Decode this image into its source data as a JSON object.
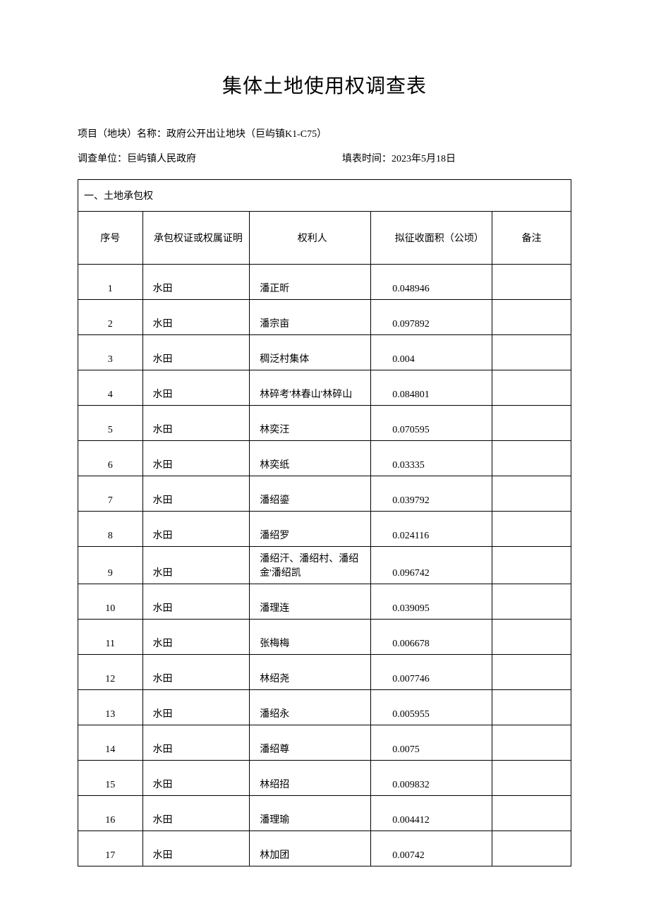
{
  "title": "集体土地使用权调查表",
  "meta": {
    "project_label": "项目（地块）名称：",
    "project_name": "政府公开出让地块（巨屿镇K1-C75）",
    "unit_label": "调查单位：",
    "unit_name": "巨屿镇人民政府",
    "date_label": "填表时间：",
    "date_value": "2023年5月18日"
  },
  "section_title": "一、土地承包权",
  "columns": {
    "seq": "序号",
    "type": "承包权证或权属证明",
    "owner": "权利人",
    "area": "拟征收面积（公顷）",
    "note": "备注"
  },
  "rows": [
    {
      "seq": "1",
      "type": "水田",
      "owner": "潘正昕",
      "area": "0.048946",
      "note": ""
    },
    {
      "seq": "2",
      "type": "水田",
      "owner": "潘宗亩",
      "area": "0.097892",
      "note": ""
    },
    {
      "seq": "3",
      "type": "水田",
      "owner": "稠泛村集体",
      "area": "0.004",
      "note": ""
    },
    {
      "seq": "4",
      "type": "水田",
      "owner": "林碎考'林春山'林碎山",
      "area": "0.084801",
      "note": ""
    },
    {
      "seq": "5",
      "type": "水田",
      "owner": "林奕汪",
      "area": "0.070595",
      "note": ""
    },
    {
      "seq": "6",
      "type": "水田",
      "owner": "林奕纸",
      "area": "0.03335",
      "note": ""
    },
    {
      "seq": "7",
      "type": "水田",
      "owner": "潘绍鎏",
      "area": "0.039792",
      "note": ""
    },
    {
      "seq": "8",
      "type": "水田",
      "owner": "潘绍罗",
      "area": "0.024116",
      "note": ""
    },
    {
      "seq": "9",
      "type": "水田",
      "owner": "潘绍汗、潘绍村、潘绍金'潘绍凯",
      "area": "0.096742",
      "note": ""
    },
    {
      "seq": "10",
      "type": "水田",
      "owner": "潘理连",
      "area": "0.039095",
      "note": ""
    },
    {
      "seq": "11",
      "type": "水田",
      "owner": "张梅梅",
      "area": "0.006678",
      "note": ""
    },
    {
      "seq": "12",
      "type": "水田",
      "owner": "林绍尧",
      "area": "0.007746",
      "note": ""
    },
    {
      "seq": "13",
      "type": "水田",
      "owner": "潘绍永",
      "area": "0.005955",
      "note": ""
    },
    {
      "seq": "14",
      "type": "水田",
      "owner": "潘绍尊",
      "area": "0.0075",
      "note": ""
    },
    {
      "seq": "15",
      "type": "水田",
      "owner": "林绍招",
      "area": "0.009832",
      "note": ""
    },
    {
      "seq": "16",
      "type": "水田",
      "owner": "潘理瑜",
      "area": "0.004412",
      "note": ""
    },
    {
      "seq": "17",
      "type": "水田",
      "owner": "林加团",
      "area": "0.00742",
      "note": ""
    }
  ]
}
